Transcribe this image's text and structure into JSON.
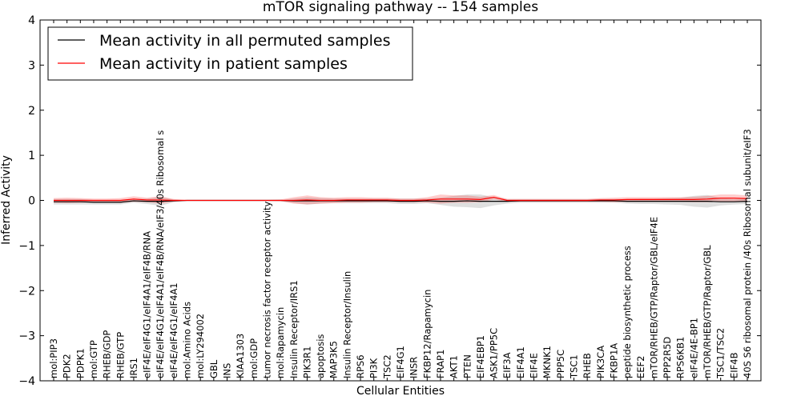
{
  "chart_data": {
    "type": "line",
    "title": "mTOR signaling pathway -- 154 samples",
    "xlabel": "Cellular Entities",
    "ylabel": "Inferred Activity",
    "ylim": [
      -4,
      4
    ],
    "yticks": [
      -4,
      -3,
      -2,
      -1,
      0,
      1,
      2,
      3,
      4
    ],
    "ytick_labels": [
      "−4",
      "−3",
      "−2",
      "−1",
      "0",
      "1",
      "2",
      "3",
      "4"
    ],
    "legend_position": "top-left",
    "categories": [
      "mol:PIP3",
      "PDK2",
      "PDPK1",
      "mol:GTP",
      "RHEB/GDP",
      "RHEB/GTP",
      "IRS1",
      "eIF4E/eIF4G1/eIF4A1/eIF4B/RNA",
      "eIF4E/eIF4G1/eIF4A1/eIF4B/RNA/eIF3/40s Ribosomal s",
      "eIF4E/eIF4G1/eIF4A1",
      "mol:Amino Acids",
      "mol:LY294002",
      "GBL",
      "INS",
      "KIAA1303",
      "mol:GDP",
      "tumor necrosis factor receptor activity",
      "mol:Rapamycin",
      "Insulin Receptor/IRS1",
      "PIK3R1",
      "apoptosis",
      "MAP3K5",
      "Insulin Receptor/Insulin",
      "RPS6",
      "PI3K",
      "TSC2",
      "EIF4G1",
      "INSR",
      "FKBP12/Rapamycin",
      "FRAP1",
      "AKT1",
      "PTEN",
      "EIF4EBP1",
      "ASK1/PP5C",
      "EIF3A",
      "EIF4A1",
      "EIF4E",
      "MKNK1",
      "PPP5C",
      "TSC1",
      "RHEB",
      "PIK3CA",
      "FKBP1A",
      "peptide biosynthetic process",
      "EEF2",
      "mTOR/RHEB/GTP/Raptor/GBL/eIF4E",
      "PPP2R5D",
      "RPS6KB1",
      "eIF4E/4E-BP1",
      "mTOR/RHEB/GTP/Raptor/GBL",
      "TSC1/TSC2",
      "EIF4B",
      "40S S6 ribosomal protein /40s Ribosomal subunit/eIF3"
    ],
    "series": [
      {
        "name": "Mean activity in all permuted samples",
        "color": "#000000",
        "values": [
          -0.03,
          -0.03,
          -0.03,
          -0.04,
          -0.04,
          -0.04,
          -0.01,
          -0.02,
          -0.02,
          -0.01,
          0.0,
          0.0,
          0.0,
          0.0,
          0.0,
          0.0,
          0.0,
          0.0,
          -0.01,
          -0.01,
          -0.01,
          -0.01,
          -0.01,
          -0.01,
          -0.01,
          -0.01,
          -0.02,
          -0.02,
          -0.01,
          -0.02,
          -0.02,
          -0.01,
          -0.02,
          -0.02,
          -0.02,
          -0.01,
          -0.01,
          -0.01,
          -0.01,
          -0.01,
          -0.01,
          -0.01,
          -0.01,
          -0.02,
          -0.02,
          -0.02,
          -0.02,
          -0.02,
          -0.02,
          -0.02,
          -0.03,
          -0.03,
          -0.02
        ],
        "band": [
          0.06,
          0.06,
          0.06,
          0.05,
          0.05,
          0.05,
          0.04,
          0.06,
          0.1,
          0.03,
          0.01,
          0.01,
          0.01,
          0.01,
          0.01,
          0.01,
          0.01,
          0.01,
          0.05,
          0.08,
          0.06,
          0.05,
          0.05,
          0.05,
          0.05,
          0.05,
          0.06,
          0.06,
          0.05,
          0.08,
          0.12,
          0.14,
          0.15,
          0.09,
          0.05,
          0.04,
          0.04,
          0.04,
          0.04,
          0.04,
          0.04,
          0.04,
          0.04,
          0.05,
          0.06,
          0.06,
          0.07,
          0.08,
          0.12,
          0.14,
          0.08,
          0.06,
          0.06
        ]
      },
      {
        "name": "Mean activity in patient samples",
        "color": "#ff0000",
        "values": [
          0.0,
          0.0,
          0.0,
          0.0,
          0.0,
          0.0,
          0.03,
          0.01,
          0.01,
          0.0,
          0.0,
          0.0,
          0.0,
          0.0,
          0.0,
          0.0,
          0.0,
          0.0,
          0.0,
          0.01,
          0.0,
          0.0,
          0.01,
          0.01,
          0.01,
          0.01,
          0.0,
          0.0,
          0.01,
          0.03,
          0.03,
          0.03,
          0.02,
          0.07,
          0.0,
          0.0,
          0.0,
          0.0,
          0.0,
          0.0,
          0.0,
          0.01,
          0.01,
          0.02,
          0.02,
          0.02,
          0.02,
          0.02,
          0.02,
          0.03,
          0.05,
          0.05,
          0.04
        ],
        "band": [
          0.05,
          0.06,
          0.05,
          0.04,
          0.04,
          0.05,
          0.06,
          0.05,
          0.08,
          0.03,
          0.01,
          0.01,
          0.01,
          0.01,
          0.01,
          0.01,
          0.01,
          0.02,
          0.07,
          0.1,
          0.07,
          0.06,
          0.06,
          0.06,
          0.05,
          0.05,
          0.04,
          0.04,
          0.06,
          0.1,
          0.08,
          0.08,
          0.06,
          0.05,
          0.03,
          0.03,
          0.03,
          0.03,
          0.03,
          0.03,
          0.03,
          0.04,
          0.05,
          0.05,
          0.05,
          0.05,
          0.05,
          0.05,
          0.06,
          0.07,
          0.08,
          0.08,
          0.07
        ]
      }
    ]
  }
}
